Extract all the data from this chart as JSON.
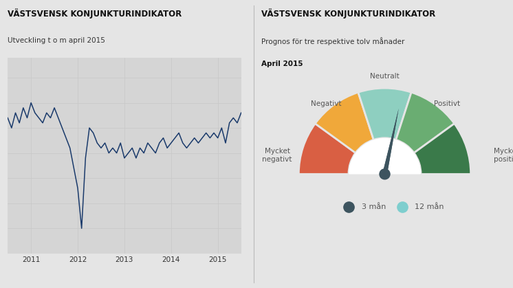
{
  "bg_color": "#e5e5e5",
  "left_title": "VÄSTSVENSK KONJUNKTURINDIKATOR",
  "left_subtitle": "Utveckling t o m april 2015",
  "right_title": "VÄSTSVENSK KONJUNKTURINDIKATOR",
  "right_subtitle1": "Prognos för tre respektive tolv månader",
  "right_subtitle2": "April 2015",
  "line_color": "#1a3a6b",
  "line_data_x": [
    0,
    1,
    2,
    3,
    4,
    5,
    6,
    7,
    8,
    9,
    10,
    11,
    12,
    13,
    14,
    15,
    16,
    17,
    18,
    19,
    20,
    21,
    22,
    23,
    24,
    25,
    26,
    27,
    28,
    29,
    30,
    31,
    32,
    33,
    34,
    35,
    36,
    37,
    38,
    39,
    40,
    41,
    42,
    43,
    44,
    45,
    46,
    47,
    48,
    49,
    50,
    51,
    52,
    53,
    54,
    55,
    56,
    57,
    58,
    59,
    60
  ],
  "line_data_y": [
    2,
    0,
    3,
    1,
    4,
    2,
    5,
    3,
    2,
    1,
    3,
    2,
    4,
    2,
    0,
    -2,
    -4,
    -8,
    -12,
    -20,
    -6,
    0,
    -1,
    -3,
    -4,
    -3,
    -5,
    -4,
    -5,
    -3,
    -6,
    -5,
    -4,
    -6,
    -4,
    -5,
    -3,
    -4,
    -5,
    -3,
    -2,
    -4,
    -3,
    -2,
    -1,
    -3,
    -4,
    -3,
    -2,
    -3,
    -2,
    -1,
    -2,
    -1,
    -2,
    0,
    -3,
    1,
    2,
    1,
    3
  ],
  "x_tick_positions": [
    6,
    18,
    30,
    42,
    54,
    60
  ],
  "x_tick_labels": [
    "2011",
    "2012",
    "2013",
    "2014",
    "2015",
    ""
  ],
  "gauge_colors": [
    "#d95f43",
    "#f0a83a",
    "#8ecfc0",
    "#6aad72",
    "#3a7a4a"
  ],
  "needle_3m_color": "#3d545f",
  "needle_12m_color": "#7ecece",
  "legend_3m": "3 mån",
  "legend_12m": "12 mån",
  "divider_color": "#bbbbbb",
  "grid_color": "#c8c8c8",
  "axis_bg": "#d5d5d5",
  "text_color": "#333333",
  "title_color": "#111111"
}
